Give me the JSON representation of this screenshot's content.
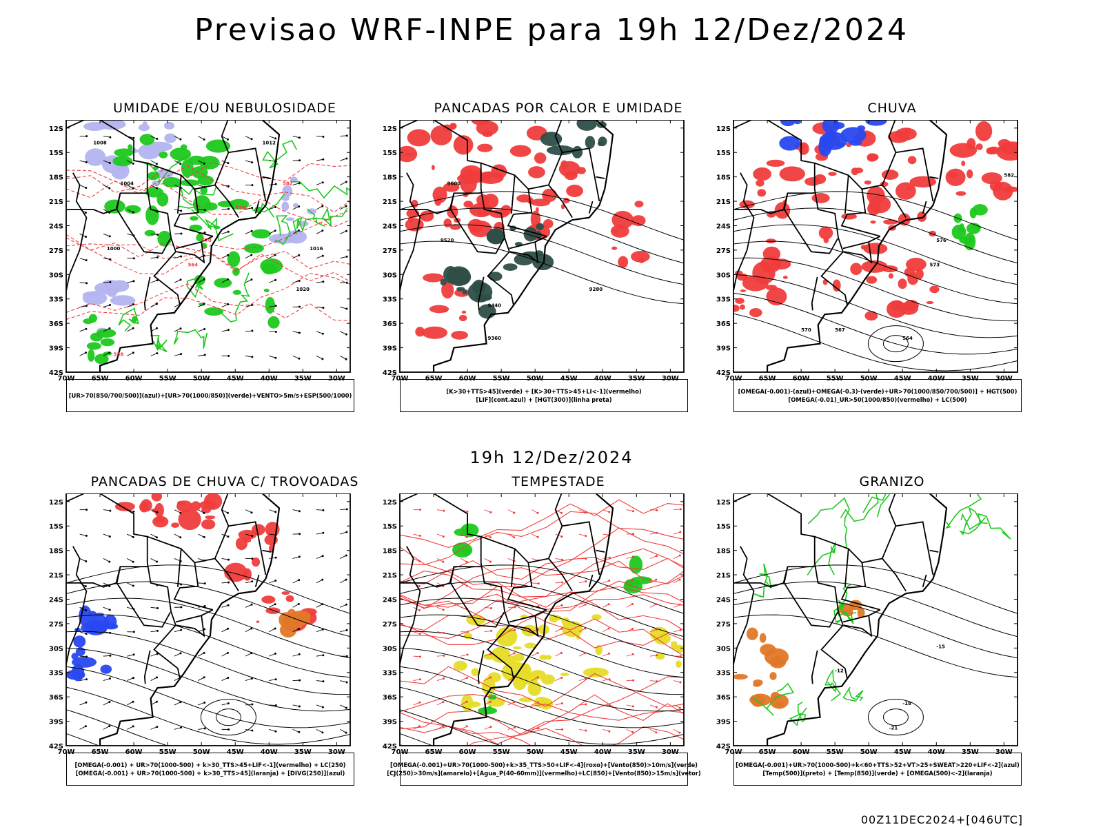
{
  "title": "Previsao WRF-INPE  para 19h 12/Dez/2024",
  "subtitle": "19h 12/Dez/2024",
  "footer": "00Z11DEC2024+[046UTC]",
  "axes": {
    "lat_ticks": [
      "12S",
      "15S",
      "18S",
      "21S",
      "24S",
      "27S",
      "30S",
      "33S",
      "36S",
      "39S",
      "42S"
    ],
    "lon_ticks": [
      "70W",
      "65W",
      "60W",
      "55W",
      "50W",
      "45W",
      "40W",
      "35W",
      "30W"
    ]
  },
  "panels": [
    {
      "title": "UMIDADE E/OU NEBULOSIDADE",
      "legend": [
        "[UR>70(850/700/500)](azul)+[UR>70(1000/850)](verde)+VENTO>5m/s+ESP(500/1000)"
      ],
      "labels": [
        "1008",
        "1004",
        "1000",
        "1012",
        "1016",
        "1020",
        "576",
        "570",
        "564",
        "558",
        "582"
      ]
    },
    {
      "title": "PANCADAS POR CALOR E UMIDADE",
      "legend": [
        "[K>30+TTS>45](verde) + [K>30+TTS>45+LI<-1](vermelho)",
        "[LIF](cont.azul) + [HGT(300)](linha preta)"
      ],
      "labels": [
        "9600",
        "9520",
        "9440",
        "9360",
        "9280"
      ]
    },
    {
      "title": "CHUVA",
      "legend": [
        "[OMEGA(-0.001)-(azul)+OMEGA(-0.3)-(verde)+UR>70(1000/850/700/500)] + HGT(500)",
        "[OMEGA(-0.01)_UR>50(1000/850)(vermelho) + LC(500)"
      ],
      "labels": [
        "582",
        "576",
        "573",
        "570",
        "567",
        "564"
      ]
    },
    {
      "title": "PANCADAS DE CHUVA C/ TROVOADAS",
      "legend": [
        "[OMEGA(-0.001) + UR>70(1000-500) + k>30_TTS>45+LIF<-1](vermelho) + LC(250)",
        "[OMEGA(-0.001) + UR>70(1000-500) + k>30_TTS>45](laranja) + [DIVG(250)](azul)"
      ],
      "labels": []
    },
    {
      "title": "TEMPESTADE",
      "legend": [
        "[OMEGA(-0.001)+UR>70(1000-500)+k>35_TTS>50+LIF<-4](roxo)+[Vento(850)>10m/s](verde)",
        "[CJ(250)>30m/s](amarelo)+[Agua_P(40-60mm)](vermelho)+LC(850)+[Vento(850)>15m/s](vetor)"
      ],
      "labels": []
    },
    {
      "title": "GRANIZO",
      "legend": [
        "[OMEGA(-0.001)+UR>70(1000-500)+k<60+TTS>52+VT>25+SWEAT>220+LIF<-2](azul)",
        "[Temp(500)](preto) + [Temp(850)](verde) + [OMEGA(500)<-2](laranja)"
      ],
      "labels": [
        "-15",
        "-18",
        "-12",
        "-21"
      ]
    }
  ],
  "colors": {
    "red": "#f03c3c",
    "green": "#1ec81e",
    "blue": "#2848f0",
    "lavender": "#b4b4f0",
    "darkteal": "#2e4e48",
    "yellow": "#e6dc28",
    "orange": "#e07828"
  }
}
